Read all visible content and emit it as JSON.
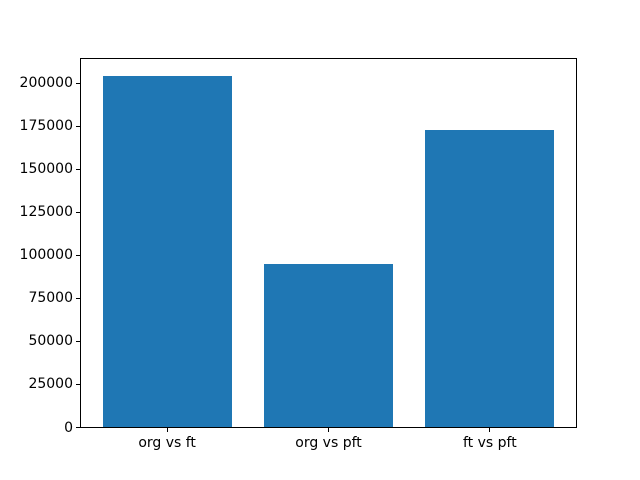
{
  "figure": {
    "background": "#ffffff",
    "bar_color": "#1f77b4",
    "axis_color": "#000000",
    "text_color": "#000000"
  },
  "chart_data": {
    "type": "bar",
    "categories": [
      "org vs ft",
      "org vs pft",
      "ft vs pft"
    ],
    "values": [
      204000,
      95000,
      173000
    ],
    "title": "",
    "xlabel": "",
    "ylabel": "",
    "yticks": [
      0,
      25000,
      50000,
      75000,
      100000,
      125000,
      150000,
      175000,
      200000
    ],
    "ytick_labels": [
      "0",
      "25000",
      "50000",
      "75000",
      "100000",
      "125000",
      "150000",
      "175000",
      "200000"
    ],
    "ylim": [
      0,
      215000
    ],
    "xlim": [
      -0.54,
      2.54
    ],
    "bar_width": 0.8,
    "grid": false,
    "legend": false
  }
}
